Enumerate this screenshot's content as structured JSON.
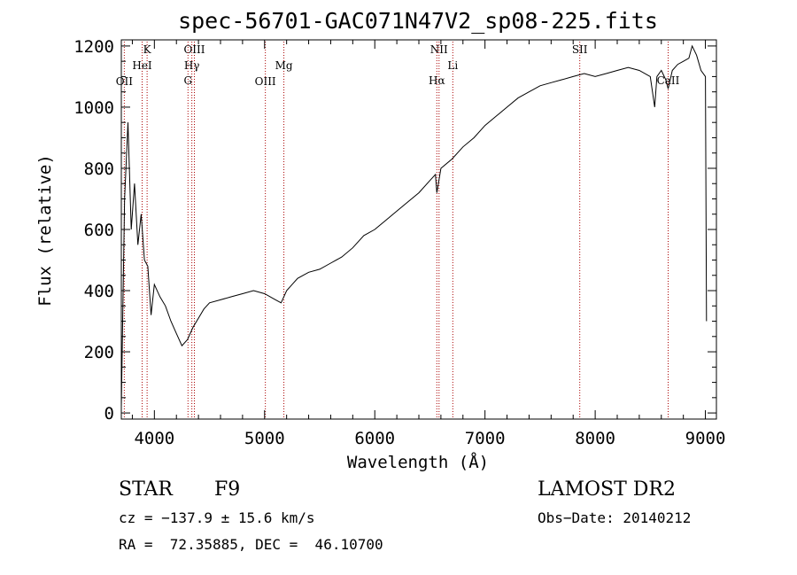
{
  "chart_data": {
    "type": "line",
    "title": "spec-56701-GAC071N47V2_sp08-225.fits",
    "xlabel": "Wavelength (Å)",
    "ylabel": "Flux (relative)",
    "xlim": [
      3700,
      9100
    ],
    "ylim": [
      -20,
      1220
    ],
    "x_ticks": [
      4000,
      5000,
      6000,
      7000,
      8000,
      9000
    ],
    "y_ticks": [
      0,
      200,
      400,
      600,
      800,
      1000,
      1200
    ],
    "grid": false,
    "line_color": "#000000",
    "marker_color": "#aa0000",
    "spectrum": {
      "x": [
        3700,
        3730,
        3760,
        3790,
        3820,
        3850,
        3880,
        3910,
        3940,
        3970,
        4000,
        4050,
        4100,
        4150,
        4200,
        4250,
        4300,
        4350,
        4400,
        4450,
        4500,
        4600,
        4700,
        4800,
        4900,
        5000,
        5100,
        5150,
        5200,
        5250,
        5300,
        5400,
        5500,
        5600,
        5700,
        5800,
        5900,
        6000,
        6100,
        6200,
        6300,
        6400,
        6500,
        6550,
        6563,
        6600,
        6700,
        6800,
        6900,
        7000,
        7100,
        7200,
        7300,
        7400,
        7500,
        7600,
        7700,
        7800,
        7900,
        8000,
        8100,
        8200,
        8300,
        8400,
        8500,
        8540,
        8560,
        8600,
        8640,
        8662,
        8700,
        8750,
        8800,
        8850,
        8880,
        8920,
        8960,
        9000,
        9010
      ],
      "y": [
        20,
        700,
        950,
        600,
        750,
        550,
        650,
        500,
        480,
        320,
        420,
        380,
        350,
        300,
        260,
        220,
        240,
        280,
        310,
        340,
        360,
        370,
        380,
        390,
        400,
        390,
        370,
        360,
        400,
        420,
        440,
        460,
        470,
        490,
        510,
        540,
        580,
        600,
        630,
        660,
        690,
        720,
        760,
        780,
        720,
        800,
        830,
        870,
        900,
        940,
        970,
        1000,
        1030,
        1050,
        1070,
        1080,
        1090,
        1100,
        1110,
        1100,
        1110,
        1120,
        1130,
        1120,
        1100,
        1000,
        1100,
        1120,
        1090,
        1060,
        1120,
        1140,
        1150,
        1160,
        1200,
        1170,
        1120,
        1100,
        300
      ]
    },
    "lines": [
      {
        "name": "OII",
        "x": 3727,
        "row": 3
      },
      {
        "name": "K",
        "x": 3934,
        "row": 0
      },
      {
        "name": "HeI",
        "x": 3889,
        "row": 1
      },
      {
        "name": "OIII",
        "x": 4363,
        "row": 0
      },
      {
        "name": "Hγ",
        "x": 4340,
        "row": 1
      },
      {
        "name": "G",
        "x": 4305,
        "row": 2
      },
      {
        "name": "OIII",
        "x": 5007,
        "row": 3
      },
      {
        "name": "Mg",
        "x": 5175,
        "row": 1
      },
      {
        "name": "NII",
        "x": 6583,
        "row": 0
      },
      {
        "name": "Hα",
        "x": 6563,
        "row": 2
      },
      {
        "name": "Li",
        "x": 6708,
        "row": 1
      },
      {
        "name": "SII",
        "x": 7860,
        "row": 0
      },
      {
        "name": "CaII",
        "x": 8662,
        "row": 2
      }
    ]
  },
  "info": {
    "object_class": "STAR",
    "subclass": "F9",
    "survey": "LAMOST DR2",
    "redshift": "cz = −137.9 ± 15.6 km/s",
    "obs_date": "Obs−Date: 20140212",
    "coords": "RA =  72.35885, DEC =  46.10700"
  }
}
